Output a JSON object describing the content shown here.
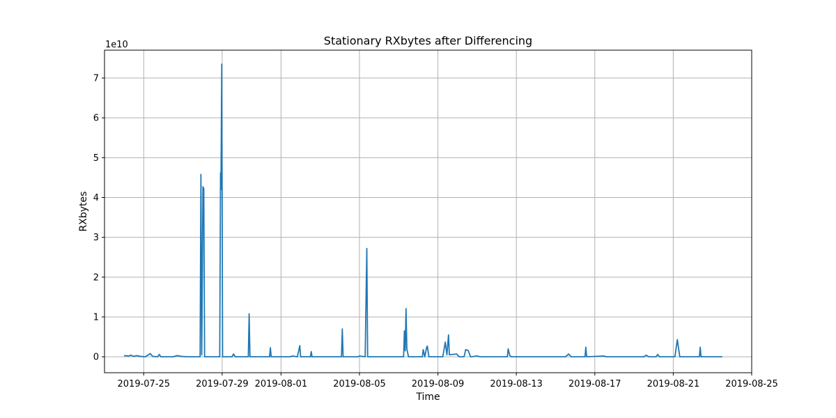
{
  "chart_data": {
    "type": "line",
    "title": "Stationary RXbytes after Differencing",
    "xlabel": "Time",
    "ylabel": "RXbytes",
    "y_multiplier_label": "1e10",
    "xlim": [
      "2019-07-23T00:00",
      "2019-08-25T00:00"
    ],
    "ylim": [
      -0.4,
      7.7
    ],
    "y_ticks": [
      0,
      1,
      2,
      3,
      4,
      5,
      6,
      7
    ],
    "x_ticks": [
      "2019-07-25",
      "2019-07-29",
      "2019-08-01",
      "2019-08-05",
      "2019-08-09",
      "2019-08-13",
      "2019-08-17",
      "2019-08-21",
      "2019-08-25"
    ],
    "grid": true,
    "line_color": "#1f77b4",
    "series": [
      {
        "unit": "1e10 bytes",
        "points": [
          [
            "2019-07-24T00:00",
            0.03
          ],
          [
            "2019-07-24T06:00",
            0.02
          ],
          [
            "2019-07-24T08:00",
            0.04
          ],
          [
            "2019-07-24T12:00",
            0.01
          ],
          [
            "2019-07-24T15:00",
            0.03
          ],
          [
            "2019-07-24T20:00",
            0.01
          ],
          [
            "2019-07-25T02:00",
            0.0
          ],
          [
            "2019-07-25T08:00",
            0.08
          ],
          [
            "2019-07-25T11:00",
            0.01
          ],
          [
            "2019-07-25T17:00",
            0.0
          ],
          [
            "2019-07-25T19:00",
            0.06
          ],
          [
            "2019-07-25T21:00",
            0.0
          ],
          [
            "2019-07-26T12:00",
            0.0
          ],
          [
            "2019-07-26T17:00",
            0.03
          ],
          [
            "2019-07-26T22:00",
            0.01
          ],
          [
            "2019-07-27T06:00",
            0.0
          ],
          [
            "2019-07-27T21:00",
            0.0
          ],
          [
            "2019-07-27T22:00",
            4.58
          ],
          [
            "2019-07-27T23:00",
            0.05
          ],
          [
            "2019-07-28T00:30",
            4.27
          ],
          [
            "2019-07-28T01:30",
            4.22
          ],
          [
            "2019-07-28T02:30",
            0.0
          ],
          [
            "2019-07-28T21:00",
            0.0
          ],
          [
            "2019-07-28T22:00",
            4.62
          ],
          [
            "2019-07-28T22:30",
            4.2
          ],
          [
            "2019-07-28T23:30",
            7.35
          ],
          [
            "2019-07-29T00:30",
            0.0
          ],
          [
            "2019-07-29T12:00",
            0.0
          ],
          [
            "2019-07-29T14:00",
            0.07
          ],
          [
            "2019-07-29T16:00",
            0.0
          ],
          [
            "2019-07-30T08:00",
            0.0
          ],
          [
            "2019-07-30T09:00",
            1.08
          ],
          [
            "2019-07-30T10:00",
            0.0
          ],
          [
            "2019-07-31T10:00",
            0.0
          ],
          [
            "2019-07-31T11:00",
            0.23
          ],
          [
            "2019-07-31T12:00",
            0.0
          ],
          [
            "2019-08-01T11:00",
            0.0
          ],
          [
            "2019-08-01T14:00",
            0.02
          ],
          [
            "2019-08-01T20:00",
            0.0
          ],
          [
            "2019-08-01T23:00",
            0.28
          ],
          [
            "2019-08-02T00:00",
            0.0
          ],
          [
            "2019-08-02T12:00",
            0.0
          ],
          [
            "2019-08-02T13:00",
            0.13
          ],
          [
            "2019-08-02T14:00",
            0.0
          ],
          [
            "2019-08-04T02:00",
            0.0
          ],
          [
            "2019-08-04T03:00",
            0.7
          ],
          [
            "2019-08-04T04:00",
            0.0
          ],
          [
            "2019-08-04T22:00",
            0.0
          ],
          [
            "2019-08-05T00:00",
            0.02
          ],
          [
            "2019-08-05T07:00",
            0.0
          ],
          [
            "2019-08-05T09:00",
            2.72
          ],
          [
            "2019-08-05T10:00",
            0.0
          ],
          [
            "2019-08-07T06:00",
            0.0
          ],
          [
            "2019-08-07T07:00",
            0.65
          ],
          [
            "2019-08-07T08:00",
            0.15
          ],
          [
            "2019-08-07T09:00",
            1.21
          ],
          [
            "2019-08-07T10:00",
            0.2
          ],
          [
            "2019-08-07T12:00",
            0.0
          ],
          [
            "2019-08-08T05:00",
            0.0
          ],
          [
            "2019-08-08T06:00",
            0.18
          ],
          [
            "2019-08-08T08:00",
            0.0
          ],
          [
            "2019-08-08T10:00",
            0.22
          ],
          [
            "2019-08-08T11:00",
            0.27
          ],
          [
            "2019-08-08T13:00",
            0.0
          ],
          [
            "2019-08-09T06:00",
            0.0
          ],
          [
            "2019-08-09T09:00",
            0.37
          ],
          [
            "2019-08-09T11:00",
            0.05
          ],
          [
            "2019-08-09T13:00",
            0.55
          ],
          [
            "2019-08-09T14:00",
            0.05
          ],
          [
            "2019-08-09T23:00",
            0.07
          ],
          [
            "2019-08-10T02:00",
            0.0
          ],
          [
            "2019-08-10T08:00",
            0.0
          ],
          [
            "2019-08-10T10:00",
            0.18
          ],
          [
            "2019-08-10T13:00",
            0.16
          ],
          [
            "2019-08-10T16:00",
            0.0
          ],
          [
            "2019-08-11T00:00",
            0.02
          ],
          [
            "2019-08-11T04:00",
            0.0
          ],
          [
            "2019-08-12T13:00",
            0.0
          ],
          [
            "2019-08-12T14:00",
            0.2
          ],
          [
            "2019-08-12T16:00",
            0.03
          ],
          [
            "2019-08-12T18:00",
            0.0
          ],
          [
            "2019-08-15T12:00",
            0.0
          ],
          [
            "2019-08-15T16:00",
            0.07
          ],
          [
            "2019-08-15T19:00",
            0.0
          ],
          [
            "2019-08-16T12:00",
            0.0
          ],
          [
            "2019-08-16T13:00",
            0.24
          ],
          [
            "2019-08-16T14:00",
            0.0
          ],
          [
            "2019-08-17T11:00",
            0.02
          ],
          [
            "2019-08-17T14:00",
            0.0
          ],
          [
            "2019-08-19T12:00",
            0.0
          ],
          [
            "2019-08-19T15:00",
            0.04
          ],
          [
            "2019-08-19T18:00",
            0.0
          ],
          [
            "2019-08-20T03:00",
            0.0
          ],
          [
            "2019-08-20T05:00",
            0.06
          ],
          [
            "2019-08-20T07:00",
            0.0
          ],
          [
            "2019-08-21T02:00",
            0.0
          ],
          [
            "2019-08-21T05:00",
            0.43
          ],
          [
            "2019-08-21T08:00",
            0.0
          ],
          [
            "2019-08-22T08:00",
            0.0
          ],
          [
            "2019-08-22T09:00",
            0.24
          ],
          [
            "2019-08-22T10:00",
            0.0
          ],
          [
            "2019-08-23T12:00",
            0.0
          ]
        ]
      }
    ]
  }
}
